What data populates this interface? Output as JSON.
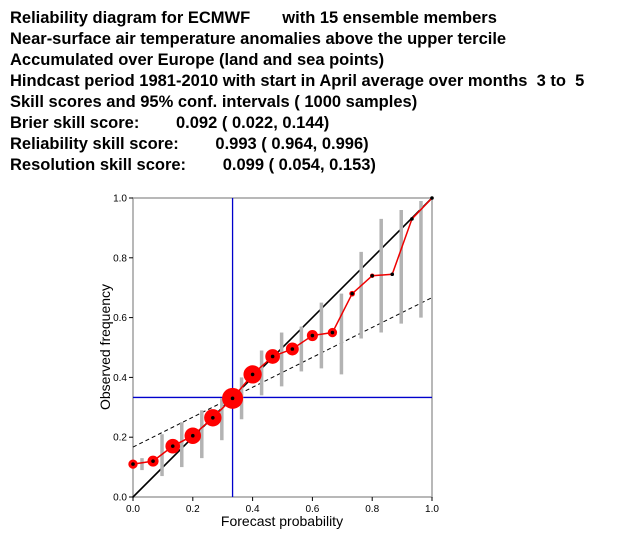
{
  "header": {
    "lines": [
      "Reliability diagram for ECMWF       with 15 ensemble members",
      "Near-surface air temperature anomalies above the upper tercile",
      "Accumulated over Europe (land and sea points)",
      "Hindcast period 1981-2010 with start in April average over months  3 to  5",
      "Skill scores and 95% conf. intervals ( 1000 samples)",
      "Brier skill score:        0.092 ( 0.022, 0.144)",
      "Reliability skill score:        0.993 ( 0.964, 0.996)",
      "Resolution skill score:        0.099 ( 0.054, 0.153)"
    ]
  },
  "chart_data": {
    "type": "scatter",
    "xlabel": "Forecast probability",
    "ylabel": "Observed frequency",
    "xlim": [
      0,
      1
    ],
    "ylim": [
      0,
      1
    ],
    "xticks": [
      "0.0",
      "0.2",
      "0.4",
      "0.6",
      "0.8",
      "1.0"
    ],
    "yticks": [
      "0.0",
      "0.2",
      "0.4",
      "0.6",
      "0.8",
      "1.0"
    ],
    "climatology": 0.333,
    "no_skill_line": {
      "x": [
        0,
        1
      ],
      "y": [
        0.167,
        0.667
      ]
    },
    "points": [
      {
        "x": 0.0,
        "y": 0.11,
        "ci": [
          0.09,
          0.13
        ],
        "size": 0.35
      },
      {
        "x": 0.067,
        "y": 0.12,
        "ci": [
          0.07,
          0.21
        ],
        "size": 0.45
      },
      {
        "x": 0.133,
        "y": 0.17,
        "ci": [
          0.1,
          0.25
        ],
        "size": 0.65
      },
      {
        "x": 0.2,
        "y": 0.205,
        "ci": [
          0.13,
          0.29
        ],
        "size": 0.75
      },
      {
        "x": 0.267,
        "y": 0.265,
        "ci": [
          0.19,
          0.33
        ],
        "size": 0.8
      },
      {
        "x": 0.333,
        "y": 0.33,
        "ci": [
          0.26,
          0.4
        ],
        "size": 1.0
      },
      {
        "x": 0.4,
        "y": 0.41,
        "ci": [
          0.34,
          0.49
        ],
        "size": 0.85
      },
      {
        "x": 0.467,
        "y": 0.47,
        "ci": [
          0.37,
          0.55
        ],
        "size": 0.65
      },
      {
        "x": 0.533,
        "y": 0.495,
        "ci": [
          0.42,
          0.57
        ],
        "size": 0.55
      },
      {
        "x": 0.6,
        "y": 0.54,
        "ci": [
          0.43,
          0.65
        ],
        "size": 0.45
      },
      {
        "x": 0.667,
        "y": 0.55,
        "ci": [
          0.41,
          0.68
        ],
        "size": 0.35
      },
      {
        "x": 0.733,
        "y": 0.68,
        "ci": [
          0.53,
          0.82
        ],
        "size": 0.15
      },
      {
        "x": 0.8,
        "y": 0.74,
        "ci": [
          0.55,
          0.93
        ],
        "size": 0.08
      },
      {
        "x": 0.867,
        "y": 0.745,
        "ci": [
          0.58,
          0.96
        ],
        "size": 0.05
      },
      {
        "x": 0.933,
        "y": 0.93,
        "ci": [
          0.6,
          0.99
        ],
        "size": 0.04
      },
      {
        "x": 1.0,
        "y": 1.0,
        "ci": [
          1.0,
          1.0
        ],
        "size": 0.03
      }
    ],
    "colors": {
      "diagonal": "#000000",
      "reliability_line": "#ee0000",
      "marker_fill": "#ff0000",
      "ci_bars": "#b3b3b3",
      "climatology_lines": "#0000cc",
      "axes": "#a0a0a0"
    }
  }
}
